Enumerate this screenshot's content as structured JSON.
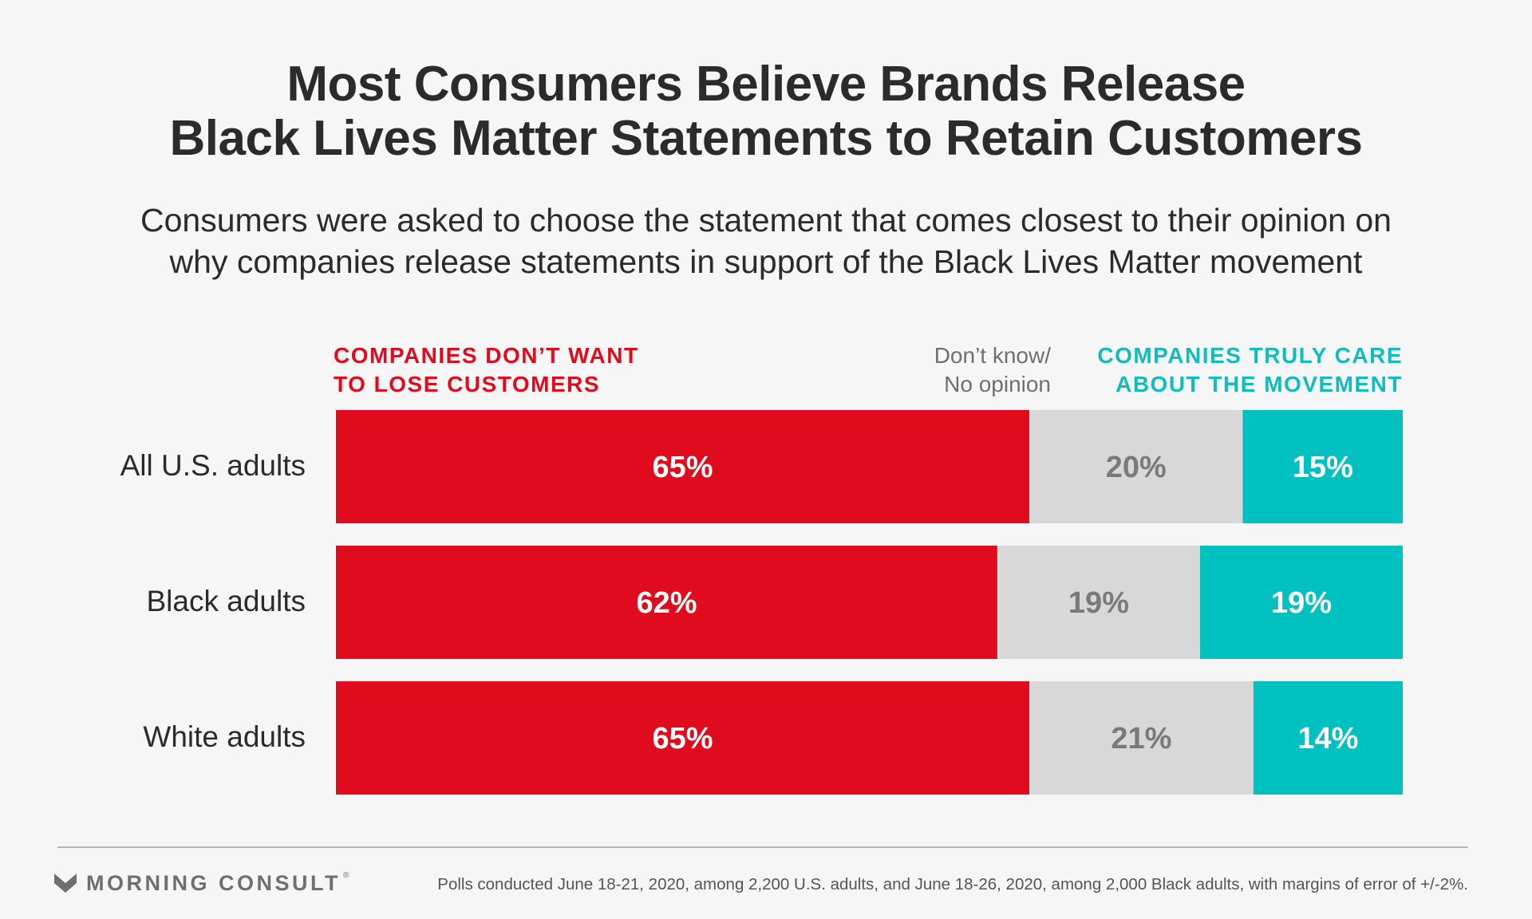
{
  "chart_data": {
    "type": "bar",
    "orientation": "horizontal",
    "stacked": true,
    "title": "Most Consumers Believe Brands Release Black Lives Matter Statements to Retain Customers",
    "subtitle": "Consumers were asked to choose the statement that comes closest to their opinion on why companies release statements in support of the Black Lives Matter movement",
    "categories": [
      "All U.S. adults",
      "Black adults",
      "White adults"
    ],
    "series": [
      {
        "name": "COMPANIES DON'T WANT TO LOSE CUSTOMERS",
        "color": "#e00b1c",
        "label_color": "#ffffff",
        "values": [
          65,
          62,
          65
        ],
        "labels": [
          "65%",
          "62%",
          "65%"
        ]
      },
      {
        "name": "Don't know/ No opinion",
        "color": "#d8d8d8",
        "label_color": "#7a7a7a",
        "values": [
          20,
          19,
          21
        ],
        "labels": [
          "20%",
          "19%",
          "21%"
        ]
      },
      {
        "name": "COMPANIES TRULY CARE ABOUT THE MOVEMENT",
        "color": "#00c0c0",
        "label_color": "#ffffff",
        "values": [
          15,
          19,
          14
        ],
        "labels": [
          "15%",
          "19%",
          "14%"
        ]
      }
    ],
    "xlim": [
      0,
      100
    ],
    "grid": false
  },
  "legend": {
    "left_line1": "COMPANIES DON’T WANT",
    "left_line2": "TO LOSE CUSTOMERS",
    "mid_line1": "Don’t know/",
    "mid_line2": "No opinion",
    "right_line1": "COMPANIES TRULY CARE",
    "right_line2": "ABOUT THE MOVEMENT"
  },
  "title_line1": "Most Consumers Believe Brands Release",
  "title_line2": "Black Lives Matter Statements to Retain Customers",
  "subtitle_line1": "Consumers were asked to choose the statement that comes closest to their opinion on",
  "subtitle_line2": "why companies release statements in support of the Black Lives Matter movement",
  "footer": {
    "logo_text": "MORNING CONSULT",
    "logo_mark": "®",
    "logo_icon": "morning-consult-chevron-icon",
    "note": "Polls conducted June 18-21, 2020, among 2,200 U.S. adults, and June 18-26, 2020, among 2,000 Black adults, with margins of error of +/-2%."
  }
}
